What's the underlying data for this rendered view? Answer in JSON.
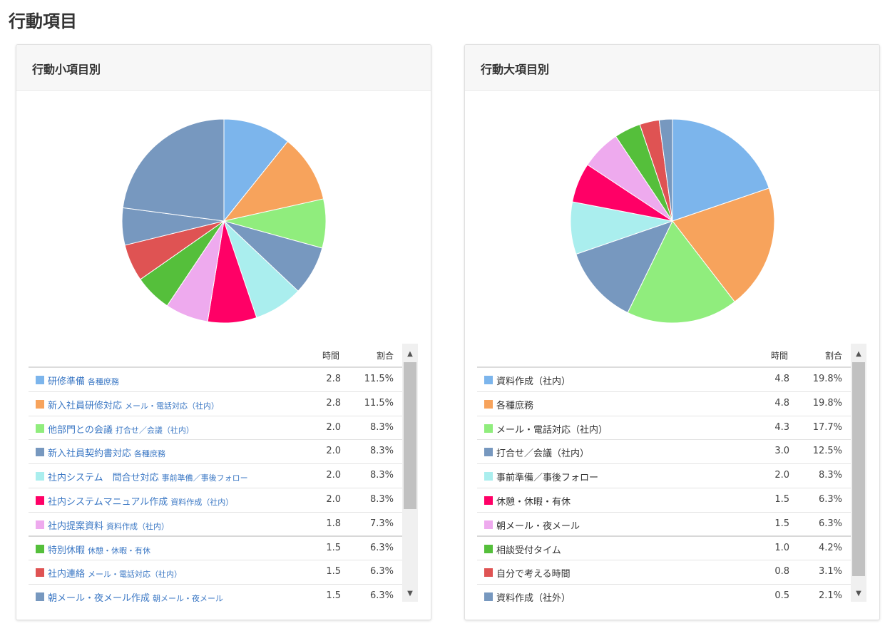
{
  "page": {
    "title": "行動項目"
  },
  "colors": [
    "#7cb5ec",
    "#f7a35c",
    "#90ed7d",
    "#7798bf",
    "#aaeeee",
    "#ff0066",
    "#eeaaee",
    "#55bf3b",
    "#df5353",
    "#7798bf"
  ],
  "table_headers": {
    "time": "時間",
    "ratio": "割合"
  },
  "scroll": {
    "up_icon": "▲",
    "down_icon": "▼"
  },
  "chart_data": [
    {
      "type": "pie",
      "title": "行動小項目別",
      "rest_color": "#7798bf",
      "rest_value": 24.5,
      "slices": [
        {
          "label": "研修準備",
          "sub": "各種庶務",
          "time": "2.8",
          "ratio": "11.5%",
          "value": 11.5,
          "color": "#7cb5ec"
        },
        {
          "label": "新入社員研修対応",
          "sub": "メール・電話対応（社内）",
          "time": "2.8",
          "ratio": "11.5%",
          "value": 11.5,
          "color": "#f7a35c"
        },
        {
          "label": "他部門との会議",
          "sub": "打合せ／会議（社内）",
          "time": "2.0",
          "ratio": "8.3%",
          "value": 8.3,
          "color": "#90ed7d"
        },
        {
          "label": "新入社員契約書対応",
          "sub": "各種庶務",
          "time": "2.0",
          "ratio": "8.3%",
          "value": 8.3,
          "color": "#7798bf"
        },
        {
          "label": "社内システム　問合せ対応",
          "sub": "事前準備／事後フォロー",
          "time": "2.0",
          "ratio": "8.3%",
          "value": 8.3,
          "color": "#aaeeee"
        },
        {
          "label": "社内システムマニュアル作成",
          "sub": "資料作成（社内）",
          "time": "2.0",
          "ratio": "8.3%",
          "value": 8.3,
          "color": "#ff0066"
        },
        {
          "label": "社内提案資料",
          "sub": "資料作成（社内）",
          "time": "1.8",
          "ratio": "7.3%",
          "value": 7.3,
          "color": "#eeaaee"
        },
        {
          "label": "特別休暇",
          "sub": "休憩・休暇・有休",
          "time": "1.5",
          "ratio": "6.3%",
          "value": 6.3,
          "color": "#55bf3b"
        },
        {
          "label": "社内連絡",
          "sub": "メール・電話対応（社内）",
          "time": "1.5",
          "ratio": "6.3%",
          "value": 6.3,
          "color": "#df5353"
        },
        {
          "label": "朝メール・夜メール作成",
          "sub": "朝メール・夜メール",
          "time": "1.5",
          "ratio": "6.3%",
          "value": 6.3,
          "color": "#7798bf"
        }
      ]
    },
    {
      "type": "pie",
      "title": "行動大項目別",
      "rest_color": "#7798bf",
      "rest_value": 0,
      "slices": [
        {
          "label": "資料作成（社内）",
          "time": "4.8",
          "ratio": "19.8%",
          "value": 19.8,
          "color": "#7cb5ec"
        },
        {
          "label": "各種庶務",
          "time": "4.8",
          "ratio": "19.8%",
          "value": 19.8,
          "color": "#f7a35c"
        },
        {
          "label": "メール・電話対応（社内）",
          "time": "4.3",
          "ratio": "17.7%",
          "value": 17.7,
          "color": "#90ed7d"
        },
        {
          "label": "打合せ／会議（社内）",
          "time": "3.0",
          "ratio": "12.5%",
          "value": 12.5,
          "color": "#7798bf"
        },
        {
          "label": "事前準備／事後フォロー",
          "time": "2.0",
          "ratio": "8.3%",
          "value": 8.3,
          "color": "#aaeeee"
        },
        {
          "label": "休憩・休暇・有休",
          "time": "1.5",
          "ratio": "6.3%",
          "value": 6.3,
          "color": "#ff0066"
        },
        {
          "label": "朝メール・夜メール",
          "time": "1.5",
          "ratio": "6.3%",
          "value": 6.3,
          "color": "#eeaaee"
        },
        {
          "label": "相談受付タイム",
          "time": "1.0",
          "ratio": "4.2%",
          "value": 4.2,
          "color": "#55bf3b"
        },
        {
          "label": "自分で考える時間",
          "time": "0.8",
          "ratio": "3.1%",
          "value": 3.1,
          "color": "#df5353"
        },
        {
          "label": "資料作成（社外）",
          "time": "0.5",
          "ratio": "2.1%",
          "value": 2.1,
          "color": "#7798bf"
        }
      ]
    }
  ]
}
